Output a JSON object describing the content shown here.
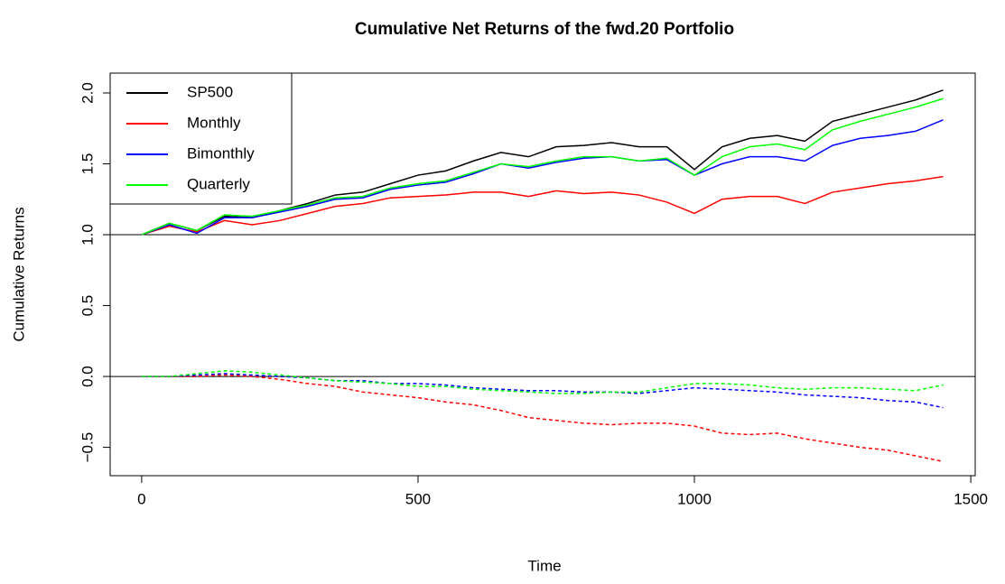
{
  "chart_data": {
    "type": "line",
    "title": "Cumulative Net Returns of the fwd.20 Portfolio",
    "x_label": "Time",
    "y_label": "Cumulative Returns",
    "x": [
      0,
      50,
      100,
      150,
      200,
      250,
      300,
      350,
      400,
      450,
      500,
      550,
      600,
      650,
      700,
      750,
      800,
      850,
      900,
      950,
      1000,
      1050,
      1100,
      1150,
      1200,
      1250,
      1300,
      1350,
      1400,
      1450
    ],
    "series": [
      {
        "name": "SP500",
        "color": "#000000",
        "dash": false,
        "values": [
          1.0,
          1.08,
          1.03,
          1.13,
          1.12,
          1.17,
          1.22,
          1.28,
          1.3,
          1.36,
          1.42,
          1.45,
          1.52,
          1.58,
          1.55,
          1.62,
          1.63,
          1.65,
          1.62,
          1.62,
          1.46,
          1.62,
          1.68,
          1.7,
          1.66,
          1.8,
          1.85,
          1.9,
          1.95,
          2.02
        ]
      },
      {
        "name": "Monthly",
        "color": "#ff0000",
        "dash": false,
        "values": [
          1.0,
          1.06,
          1.02,
          1.1,
          1.07,
          1.1,
          1.15,
          1.2,
          1.22,
          1.26,
          1.27,
          1.28,
          1.3,
          1.3,
          1.27,
          1.31,
          1.29,
          1.3,
          1.28,
          1.23,
          1.15,
          1.25,
          1.27,
          1.27,
          1.22,
          1.3,
          1.33,
          1.36,
          1.38,
          1.41
        ]
      },
      {
        "name": "Bimonthly",
        "color": "#0000ff",
        "dash": false,
        "values": [
          1.0,
          1.07,
          1.01,
          1.12,
          1.12,
          1.16,
          1.2,
          1.25,
          1.26,
          1.32,
          1.35,
          1.37,
          1.43,
          1.5,
          1.47,
          1.51,
          1.54,
          1.55,
          1.52,
          1.53,
          1.42,
          1.5,
          1.55,
          1.55,
          1.52,
          1.63,
          1.68,
          1.7,
          1.73,
          1.81
        ]
      },
      {
        "name": "Quarterly",
        "color": "#00ff00",
        "dash": false,
        "values": [
          1.0,
          1.08,
          1.03,
          1.14,
          1.13,
          1.17,
          1.21,
          1.26,
          1.27,
          1.33,
          1.36,
          1.38,
          1.44,
          1.5,
          1.48,
          1.52,
          1.55,
          1.55,
          1.52,
          1.54,
          1.42,
          1.55,
          1.62,
          1.64,
          1.6,
          1.74,
          1.8,
          1.85,
          1.9,
          1.96
        ]
      },
      {
        "color": "#ff0000",
        "dash": true,
        "values": [
          0,
          0,
          0,
          0.01,
          0,
          -0.02,
          -0.05,
          -0.07,
          -0.11,
          -0.13,
          -0.15,
          -0.18,
          -0.2,
          -0.24,
          -0.29,
          -0.31,
          -0.33,
          -0.34,
          -0.33,
          -0.33,
          -0.35,
          -0.4,
          -0.41,
          -0.4,
          -0.44,
          -0.47,
          -0.5,
          -0.52,
          -0.56,
          -0.6
        ]
      },
      {
        "color": "#0000ff",
        "dash": true,
        "values": [
          0,
          0,
          0.01,
          0.02,
          0.01,
          0,
          -0.01,
          -0.03,
          -0.03,
          -0.05,
          -0.05,
          -0.06,
          -0.08,
          -0.09,
          -0.1,
          -0.1,
          -0.11,
          -0.11,
          -0.12,
          -0.1,
          -0.08,
          -0.09,
          -0.1,
          -0.11,
          -0.13,
          -0.14,
          -0.15,
          -0.17,
          -0.18,
          -0.22
        ]
      },
      {
        "color": "#00ff00",
        "dash": true,
        "values": [
          0,
          0,
          0.02,
          0.04,
          0.03,
          0.01,
          -0.01,
          -0.03,
          -0.04,
          -0.05,
          -0.07,
          -0.07,
          -0.09,
          -0.1,
          -0.11,
          -0.12,
          -0.12,
          -0.11,
          -0.11,
          -0.08,
          -0.05,
          -0.05,
          -0.06,
          -0.08,
          -0.09,
          -0.08,
          -0.08,
          -0.09,
          -0.1,
          -0.06
        ]
      }
    ],
    "hlines": [
      0,
      1
    ],
    "xlim": [
      -57,
      1508
    ],
    "ylim": [
      -0.7,
      2.14
    ],
    "xticks": [
      0,
      500,
      1000,
      1500
    ],
    "yticks": [
      {
        "value": -0.5,
        "label": "−0.5"
      },
      {
        "value": 0,
        "label": "0.0"
      },
      0.5,
      {
        "value": 1,
        "label": "1.0"
      },
      1.5,
      {
        "value": 2,
        "label": "2.0"
      }
    ],
    "legend": "top-left"
  }
}
